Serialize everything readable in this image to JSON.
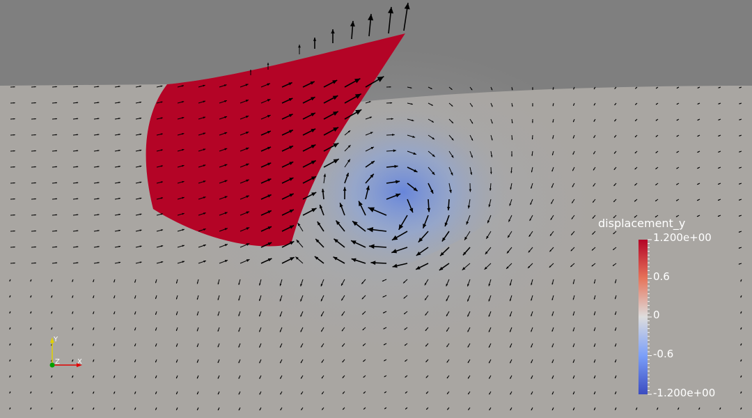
{
  "colors": {
    "background": "#7f7f7f",
    "domain": "#a9a6a2",
    "positive": "#b40426",
    "negative": "#3b4cc0",
    "neutral": "#dddddd",
    "arrows": "#000000",
    "axis_x": "#e00000",
    "axis_y": "#e0d000",
    "axis_z": "#00a000"
  },
  "scalar_bar": {
    "title": "displacement_y",
    "max_label": "1.200e+00",
    "tick_1": "0.6",
    "tick_2": "0",
    "tick_3": "-0.6",
    "min_label": "-1.200e+00",
    "colormap": "cool-to-warm"
  },
  "orientation_axes": {
    "x": "X",
    "y": "Y",
    "z": "Z"
  },
  "icons": {
    "vector_glyphs": "arrow-glyph-icon",
    "orientation_axes": "orientation-axes-icon"
  }
}
